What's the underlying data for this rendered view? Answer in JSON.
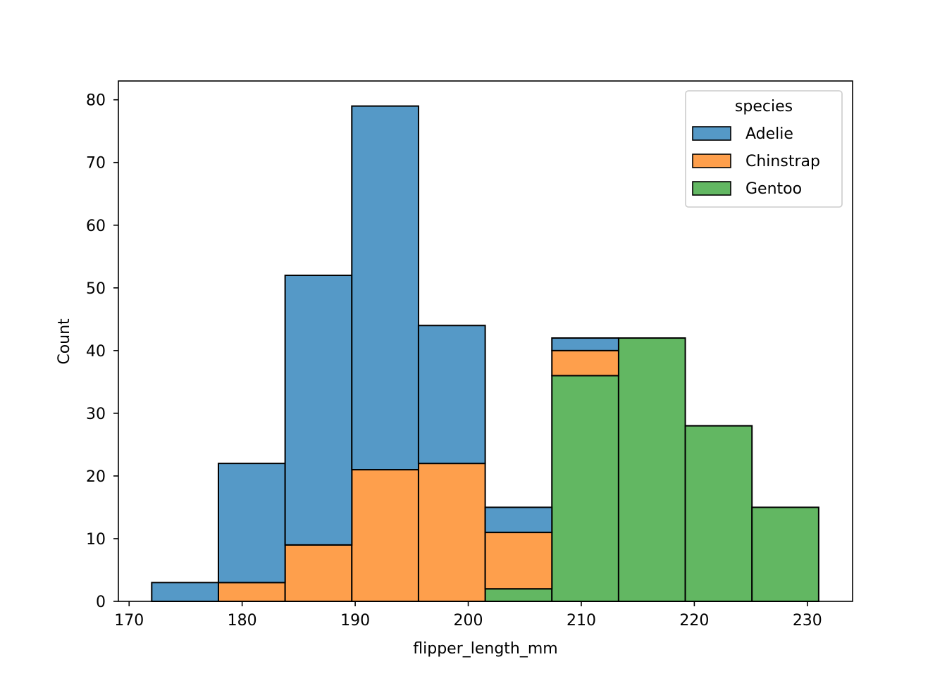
{
  "chart_data": {
    "type": "bar",
    "stacked": true,
    "xlabel": "flipper_length_mm",
    "ylabel": "Count",
    "xlim": [
      169.05,
      234.0
    ],
    "ylim": [
      0,
      83
    ],
    "xticks": [
      170,
      180,
      190,
      200,
      210,
      220,
      230
    ],
    "yticks": [
      0,
      10,
      20,
      30,
      40,
      50,
      60,
      70,
      80
    ],
    "bin_edges": [
      172.0,
      177.9,
      183.8,
      189.7,
      195.6,
      201.5,
      207.4,
      213.3,
      219.2,
      225.1,
      231.0
    ],
    "series": [
      {
        "name": "Gentoo",
        "color": "#62b762",
        "values": [
          0,
          0,
          0,
          0,
          0,
          2,
          36,
          42,
          28,
          15
        ]
      },
      {
        "name": "Chinstrap",
        "color": "#fe9f4c",
        "values": [
          0,
          3,
          9,
          21,
          22,
          9,
          4,
          0,
          0,
          0
        ]
      },
      {
        "name": "Adelie",
        "color": "#5599c7",
        "values": [
          3,
          19,
          43,
          58,
          22,
          4,
          2,
          0,
          0,
          0
        ]
      }
    ],
    "legend": {
      "title": "species",
      "position": "top-right",
      "entries": [
        {
          "label": "Adelie",
          "color": "#5599c7"
        },
        {
          "label": "Chinstrap",
          "color": "#fe9f4c"
        },
        {
          "label": "Gentoo",
          "color": "#62b762"
        }
      ]
    },
    "grid": false
  }
}
